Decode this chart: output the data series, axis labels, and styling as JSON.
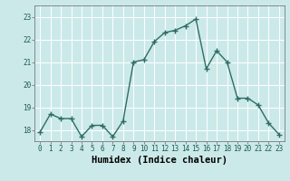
{
  "xlabel": "Humidex (Indice chaleur)",
  "ylabel": "",
  "x": [
    0,
    1,
    2,
    3,
    4,
    5,
    6,
    7,
    8,
    9,
    10,
    11,
    12,
    13,
    14,
    15,
    16,
    17,
    18,
    19,
    20,
    21,
    22,
    23
  ],
  "y": [
    17.9,
    18.7,
    18.5,
    18.5,
    17.7,
    18.2,
    18.2,
    17.7,
    18.4,
    21.0,
    21.1,
    21.9,
    22.3,
    22.4,
    22.6,
    22.9,
    20.7,
    21.5,
    21.0,
    19.4,
    19.4,
    19.1,
    18.3,
    17.8
  ],
  "line_color": "#2e6e62",
  "bg_color": "#cce9e9",
  "grid_color": "#ffffff",
  "ylim": [
    17.5,
    23.5
  ],
  "yticks": [
    18,
    19,
    20,
    21,
    22,
    23
  ],
  "marker": "+",
  "marker_size": 4,
  "linewidth": 1.0,
  "tick_fontsize": 5.5,
  "xlabel_fontsize": 7.5
}
